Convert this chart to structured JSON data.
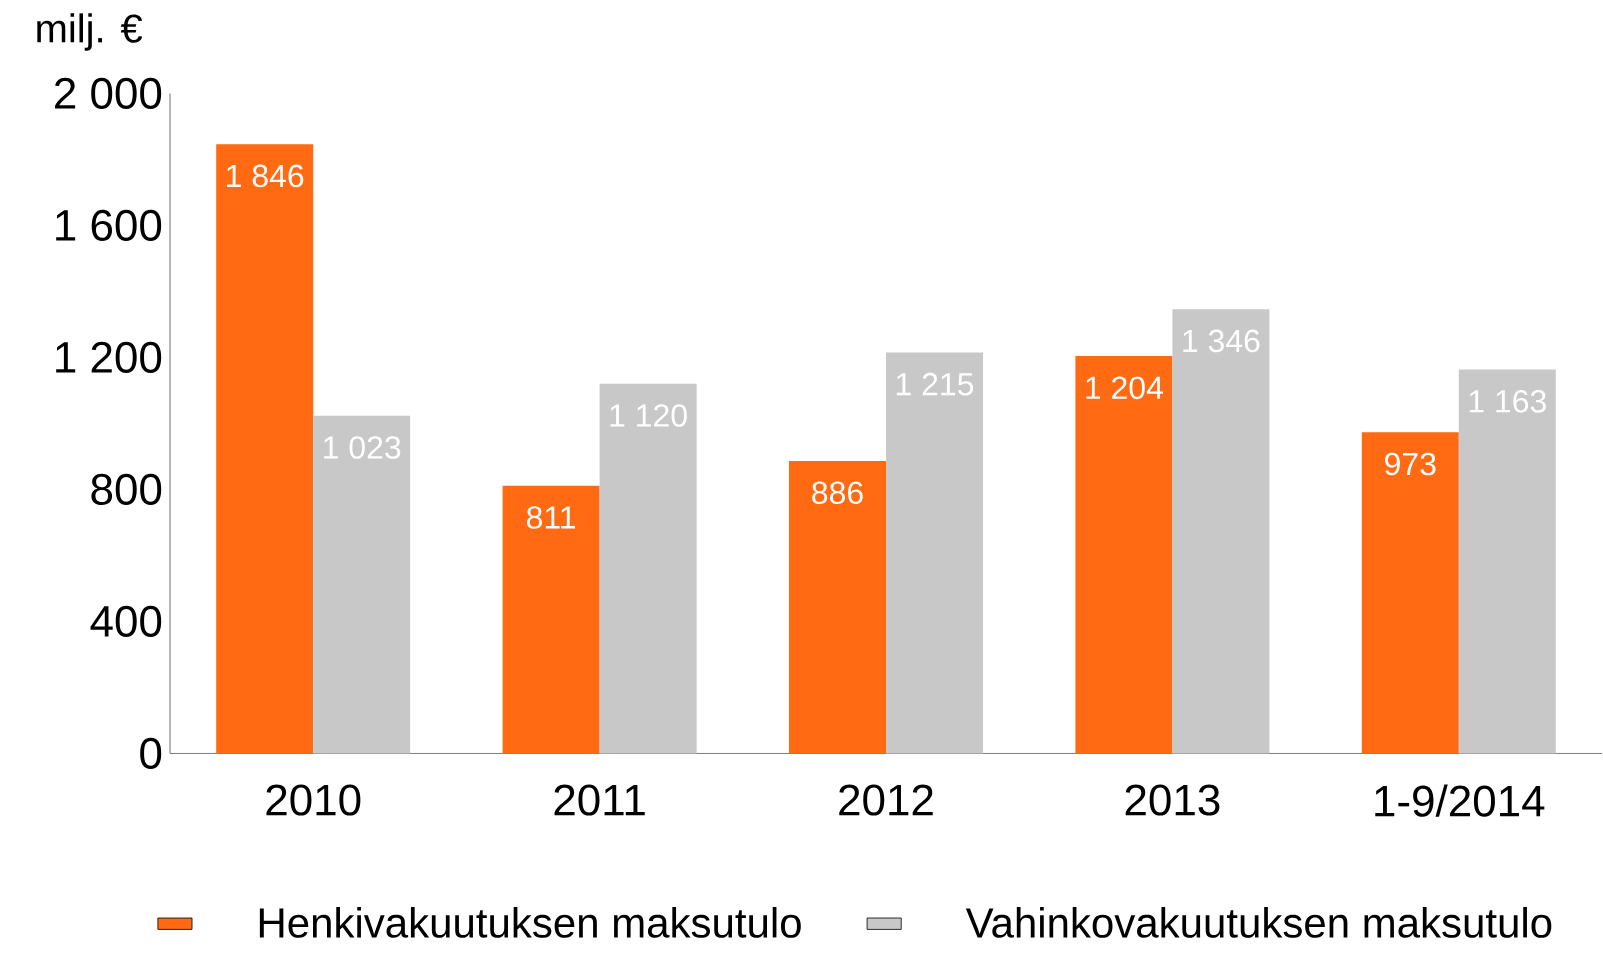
{
  "chart_data": {
    "type": "bar",
    "ylabel": "milj. €",
    "categories": [
      "2010",
      "2011",
      "2012",
      "2013",
      "1-9/2014"
    ],
    "series": [
      {
        "name": "Henkivakuutuksen maksutulo",
        "color": "#ff6a13",
        "values": [
          1846,
          811,
          886,
          1204,
          973
        ],
        "value_labels": [
          "1 846",
          "811",
          "886",
          "1 204",
          "973"
        ]
      },
      {
        "name": "Vahinkovakuutuksen maksutulo",
        "color": "#c8c8c8",
        "values": [
          1023,
          1120,
          1215,
          1346,
          1163
        ],
        "value_labels": [
          "1 023",
          "1 120",
          "1 215",
          "1 346",
          "1 163"
        ]
      }
    ],
    "ylim": [
      0,
      2000
    ],
    "yticks": [
      0,
      {
        "value": 400,
        "label": "400"
      },
      {
        "value": 800,
        "label": "800"
      },
      {
        "value": 1200,
        "label": "1 200"
      },
      {
        "value": 1600,
        "label": "1 600"
      },
      {
        "value": 2000,
        "label": "2 000"
      }
    ],
    "grid": false,
    "legend": "bottom"
  }
}
